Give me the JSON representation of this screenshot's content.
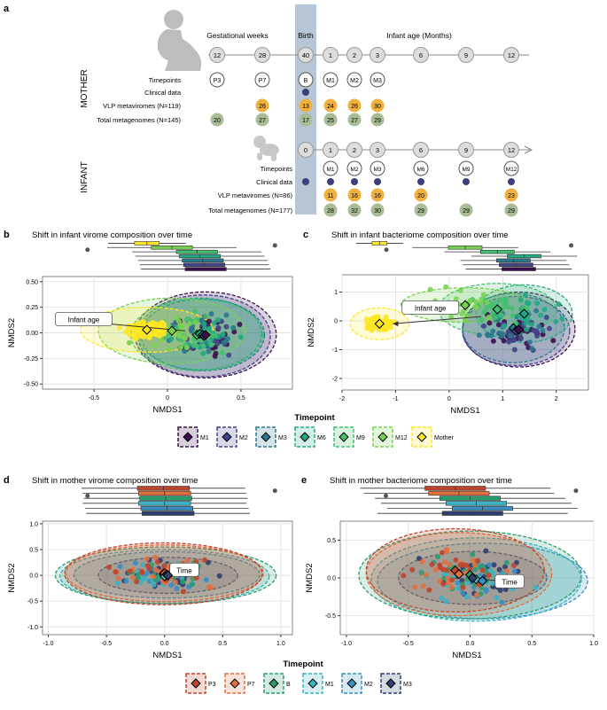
{
  "figure": {
    "panel_a": {
      "letter": "a",
      "mother_label": "MOTHER",
      "infant_label": "INFANT",
      "header_gestational": "Gestational weeks",
      "header_birth": "Birth",
      "header_infant_age": "Infant age (Months)",
      "mother_timeline": [
        "12",
        "28",
        "40",
        "1",
        "2",
        "3",
        "6",
        "9",
        "12"
      ],
      "mother_timepoints": [
        "P3",
        "P7",
        "B",
        "M1",
        "M2",
        "M3"
      ],
      "mother_rows": {
        "timepoints": "Timepoints",
        "clinical": "Clinical data",
        "vlp": "VLP metaviromes (N=119)",
        "total": "Total metagenomes (N=145)"
      },
      "mother_vlp_counts": [
        "26",
        "13",
        "24",
        "26",
        "30"
      ],
      "mother_total_counts": [
        "20",
        "27",
        "17",
        "25",
        "27",
        "29"
      ],
      "infant_timeline": [
        "0",
        "1",
        "2",
        "3",
        "6",
        "9",
        "12"
      ],
      "infant_timepoints": [
        "M1",
        "M2",
        "M3",
        "M6",
        "M9",
        "M12"
      ],
      "infant_rows": {
        "timepoints": "Timepoints",
        "clinical": "Clinical data",
        "vlp": "VLP metaviromes (N=86)",
        "total": "Total metagenomes (N=177)"
      },
      "infant_vlp_counts": [
        "11",
        "16",
        "16",
        "20",
        "23"
      ],
      "infant_total_counts": [
        "28",
        "32",
        "30",
        "29",
        "29",
        "29"
      ]
    },
    "legend_infant": {
      "title": "Timepoint",
      "items": [
        {
          "label": "M1",
          "color": "#3b0f4f"
        },
        {
          "label": "M2",
          "color": "#414487"
        },
        {
          "label": "M3",
          "color": "#2a788e"
        },
        {
          "label": "M6",
          "color": "#22a884"
        },
        {
          "label": "M9",
          "color": "#44bf70"
        },
        {
          "label": "M12",
          "color": "#7ad151"
        },
        {
          "label": "Mother",
          "color": "#fde725"
        }
      ]
    },
    "legend_mother": {
      "title": "Timepoint",
      "items": [
        {
          "label": "P3",
          "color": "#c0442b"
        },
        {
          "label": "P7",
          "color": "#e2703f"
        },
        {
          "label": "B",
          "color": "#2a9d6f"
        },
        {
          "label": "M1",
          "color": "#3bb3c3"
        },
        {
          "label": "M2",
          "color": "#3a8fc0"
        },
        {
          "label": "M3",
          "color": "#2f3f6e"
        }
      ]
    }
  },
  "chart_data": [
    {
      "panel": "b",
      "type": "scatter",
      "title": "Shift in infant virome composition over time",
      "xlabel": "NMDS1",
      "ylabel": "NMDS2",
      "xlim": [
        -0.85,
        0.85
      ],
      "ylim": [
        -0.55,
        0.55
      ],
      "xticks": [
        -0.5,
        0,
        0.5
      ],
      "xtick_labels": [
        "-0.5",
        "0",
        "0.5"
      ],
      "yticks": [
        -0.5,
        -0.25,
        0,
        0.25,
        0.5
      ],
      "ytick_labels": [
        "-0.50",
        "-0.25",
        "0.00",
        "0.25",
        "0.50"
      ],
      "annotation": "Infant age",
      "centroids": [
        {
          "group": "Mother",
          "x": -0.14,
          "y": 0.03
        },
        {
          "group": "M12",
          "x": 0.03,
          "y": 0.02
        },
        {
          "group": "M9",
          "x": 0.2,
          "y": -0.02
        },
        {
          "group": "M6",
          "x": 0.22,
          "y": -0.01
        },
        {
          "group": "M3",
          "x": 0.24,
          "y": -0.02
        },
        {
          "group": "M2",
          "x": 0.25,
          "y": -0.03
        },
        {
          "group": "M1",
          "x": 0.26,
          "y": -0.02
        }
      ]
    },
    {
      "panel": "c",
      "type": "scatter",
      "title": "Shift in infant bacteriome composition over time",
      "xlabel": "NMDS1",
      "ylabel": "NMDS2",
      "xlim": [
        -2,
        2.6
      ],
      "ylim": [
        -2.4,
        1.6
      ],
      "xticks": [
        -2,
        -1,
        0,
        1,
        2
      ],
      "xtick_labels": [
        "-2",
        "-1",
        "0",
        "1",
        "2"
      ],
      "yticks": [
        -2,
        -1,
        0,
        1
      ],
      "ytick_labels": [
        "-2",
        "-1",
        "0",
        "1"
      ],
      "annotation": "Infant age",
      "centroids": [
        {
          "group": "Mother",
          "x": -1.3,
          "y": -0.1
        },
        {
          "group": "M12",
          "x": 0.3,
          "y": 0.55
        },
        {
          "group": "M9",
          "x": 0.9,
          "y": 0.4
        },
        {
          "group": "M6",
          "x": 1.4,
          "y": 0.25
        },
        {
          "group": "M3",
          "x": 1.2,
          "y": -0.25
        },
        {
          "group": "M2",
          "x": 1.25,
          "y": -0.35
        },
        {
          "group": "M1",
          "x": 1.3,
          "y": -0.3
        }
      ]
    },
    {
      "panel": "d",
      "type": "scatter",
      "title": "Shift in mother virome composition over time",
      "xlabel": "NMDS1",
      "ylabel": "NMDS2",
      "xlim": [
        -1.05,
        1.1
      ],
      "ylim": [
        -1.15,
        1.05
      ],
      "xticks": [
        -1,
        -0.5,
        0,
        0.5,
        1
      ],
      "xtick_labels": [
        "-1.0",
        "-0.5",
        "0.0",
        "0.5",
        "1.0"
      ],
      "yticks": [
        -1,
        -0.5,
        0,
        0.5,
        1
      ],
      "ytick_labels": [
        "-1.0",
        "-0.5",
        "0.0",
        "0.5",
        "1.0"
      ],
      "annotation": "Time",
      "centroids": [
        {
          "group": "P3",
          "x": -0.01,
          "y": 0.03
        },
        {
          "group": "P7",
          "x": 0.0,
          "y": 0.04
        },
        {
          "group": "B",
          "x": 0.01,
          "y": 0.0
        },
        {
          "group": "M1",
          "x": 0.0,
          "y": -0.02
        },
        {
          "group": "M2",
          "x": 0.02,
          "y": 0.01
        },
        {
          "group": "M3",
          "x": 0.03,
          "y": 0.0
        }
      ]
    },
    {
      "panel": "e",
      "type": "scatter",
      "title": "Shift in mother bacteriome composition over time",
      "xlabel": "NMDS1",
      "ylabel": "NMDS2",
      "xlim": [
        -1.05,
        1.0
      ],
      "ylim": [
        -0.75,
        0.75
      ],
      "xticks": [
        -1,
        -0.5,
        0,
        0.5,
        1
      ],
      "xtick_labels": [
        "-1.0",
        "-0.5",
        "0.0",
        "0.5",
        "1.0"
      ],
      "yticks": [
        -0.5,
        0,
        0.5
      ],
      "ytick_labels": [
        "-0.5",
        "0.0",
        "0.5"
      ],
      "annotation": "Time",
      "centroids": [
        {
          "group": "P3",
          "x": -0.12,
          "y": 0.1
        },
        {
          "group": "P7",
          "x": -0.09,
          "y": 0.05
        },
        {
          "group": "B",
          "x": 0.0,
          "y": 0.04
        },
        {
          "group": "M1",
          "x": 0.05,
          "y": -0.02
        },
        {
          "group": "M2",
          "x": 0.1,
          "y": -0.04
        },
        {
          "group": "M3",
          "x": 0.02,
          "y": 0.0
        }
      ]
    }
  ]
}
